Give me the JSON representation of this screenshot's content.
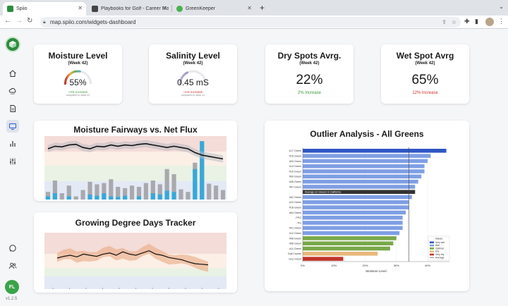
{
  "browser": {
    "tabs": [
      {
        "title": "Spiio",
        "color": "#2e8b3e"
      },
      {
        "title": "Playbooks for Golf - Career Mo...",
        "color": "#444444"
      },
      {
        "title": "GreenKeeper",
        "color": "#4caf50"
      }
    ],
    "url": "map.spiio.com/widgets-dashboard"
  },
  "sidebar": {
    "icons": [
      "home-icon",
      "cloud-icon",
      "document-icon",
      "monitor-icon",
      "bar-chart-icon",
      "sliders-icon",
      "chat-icon",
      "users-icon"
    ],
    "avatar_initials": "FL",
    "version": "v1.2.5"
  },
  "kpis": {
    "moisture": {
      "title": "Moisture Level",
      "week": "(Week 42)",
      "value": "55%",
      "delta": "+2% increase",
      "sub": "compared to week 41",
      "level": 0.55
    },
    "salinity": {
      "title": "Salinity Level",
      "week": "(Week 42)",
      "value": "0.45 mS",
      "delta": "+1% increase",
      "sub": "compared to week 41",
      "level": 0.35
    },
    "dry": {
      "title": "Dry Spots Avrg.",
      "week": "(Week 42)",
      "value": "22%",
      "delta": "2% increase"
    },
    "wet": {
      "title": "Wet Spot Avrg",
      "week": "(Week 42)",
      "value": "65%",
      "delta": "12% increase"
    }
  },
  "colors": {
    "green": "#3a9a3a",
    "red": "#d03030"
  },
  "fairways": {
    "title": "Moisture Fairways vs. Net Flux",
    "bars_gray": [
      0.12,
      0.3,
      0.1,
      0.22,
      0.05,
      0.15,
      0.28,
      0.24,
      0.26,
      0.32,
      0.2,
      0.18,
      0.22,
      0.2,
      0.26,
      0.3,
      0.24,
      0.48,
      0.4,
      0.16,
      0.12,
      0.58,
      0.65,
      0.25,
      0.22,
      0.15
    ],
    "bars_blue": [
      0.05,
      0.1,
      0,
      0.05,
      0,
      0,
      0.08,
      0.06,
      0.1,
      0.05,
      0.04,
      0.06,
      0,
      0.05,
      0,
      0.1,
      0.08,
      0.14,
      0.12,
      0,
      0,
      0.48,
      0.92,
      0,
      0,
      0
    ],
    "line": [
      0.8,
      0.84,
      0.83,
      0.86,
      0.87,
      0.82,
      0.8,
      0.84,
      0.83,
      0.86,
      0.84,
      0.86,
      0.85,
      0.87,
      0.88,
      0.86,
      0.84,
      0.82,
      0.84,
      0.82,
      0.8,
      0.74,
      0.7,
      0.68,
      0.66,
      0.64
    ]
  },
  "gdd": {
    "title": "Growing Degree Days Tracker",
    "line": [
      0.55,
      0.58,
      0.6,
      0.57,
      0.62,
      0.6,
      0.58,
      0.62,
      0.64,
      0.6,
      0.66,
      0.62,
      0.6,
      0.64,
      0.68,
      0.62,
      0.6,
      0.56,
      0.54,
      0.52,
      0.48,
      0.45,
      0.44,
      0.43
    ]
  },
  "chart_data": {
    "type": "bar",
    "title": "Outlier Analysis - All Greens",
    "orientation": "horizontal",
    "categories": [
      "#17 Green",
      "#15 Green",
      "#03 Green",
      "#14 Green",
      "#10 Green",
      "#09 Green",
      "#05 Green",
      "#07 Green",
      "Average on Greens in California",
      "#02 Green",
      "#13 Green",
      "#18 Green",
      "#04 Green",
      "PPG",
      "PG",
      "#01 Green",
      "#12 Green",
      "#06 Green",
      "#08 Green",
      "#11 Green",
      "Golf Course",
      "very Green"
    ],
    "values": [
      46,
      41,
      40,
      39,
      39,
      38,
      37,
      36,
      36,
      35,
      34,
      34,
      33,
      32,
      32,
      32,
      31,
      30,
      29,
      28,
      24,
      13
    ],
    "kinds": [
      "verywet",
      "wet",
      "wet",
      "wet",
      "wet",
      "wet",
      "wet",
      "wet",
      "average",
      "wet",
      "wet",
      "wet",
      "wet",
      "wet",
      "wet",
      "wet",
      "wet",
      "optimal",
      "optimal",
      "optimal",
      "dry",
      "verydry"
    ],
    "xlim": [
      0,
      47
    ],
    "xticks": [
      "0%",
      "10%",
      "20%",
      "30%",
      "40%"
    ],
    "xlabel": "Moisture Level",
    "reference_line": 34,
    "legend": {
      "title": "Values",
      "placement": "bottom-right",
      "entries": [
        {
          "label": "Very wet",
          "color": "#2f56c4"
        },
        {
          "label": "Wet",
          "color": "#7f9fe4"
        },
        {
          "label": "Optimal",
          "color": "#79a84a"
        },
        {
          "label": "Dry",
          "color": "#e8b87c"
        },
        {
          "label": "Very dry",
          "color": "#c0352b"
        },
        {
          "label": "Average",
          "color": "#333333"
        }
      ]
    },
    "kind_colors": {
      "verywet": "#2f56c4",
      "wet": "#7f9fe4",
      "optimal": "#79a84a",
      "dry": "#e8b87c",
      "verydry": "#c0352b",
      "average": "#333333"
    }
  }
}
